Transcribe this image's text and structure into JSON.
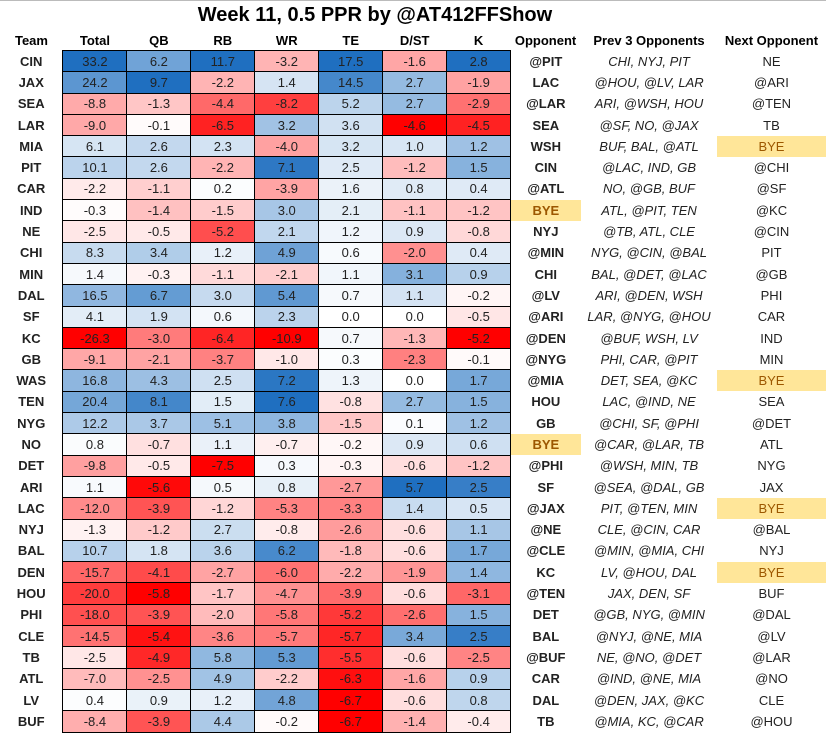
{
  "title": "Week 11, 0.5 PPR by @AT412FFShow",
  "chart_data": {
    "type": "heatmap",
    "title": "Week 11, 0.5 PPR by @AT412FFShow",
    "columns": [
      "Team",
      "Total",
      "QB",
      "RB",
      "WR",
      "TE",
      "D/ST",
      "K",
      "Opponent",
      "Prev  3 Opponents",
      "Next Opponent"
    ],
    "value_columns": [
      "Total",
      "QB",
      "RB",
      "WR",
      "TE",
      "D/ST",
      "K"
    ],
    "colors": {
      "negative": "#FF0000",
      "neutral": "#FFFFFF",
      "positive": "#1F6FC0",
      "bye": "#FFE699"
    },
    "rows": [
      [
        "CIN",
        33.2,
        6.2,
        11.7,
        -3.2,
        17.5,
        -1.6,
        2.8,
        "@PIT",
        "CHI, NYJ, PIT",
        "NE"
      ],
      [
        "JAX",
        24.2,
        9.7,
        -2.2,
        1.4,
        14.5,
        2.7,
        -1.9,
        "LAC",
        "@HOU, @LV, LAR",
        "@ARI"
      ],
      [
        "SEA",
        -8.8,
        -1.3,
        -4.4,
        -8.2,
        5.2,
        2.7,
        -2.9,
        "@LAR",
        "ARI, @WSH, HOU",
        "@TEN"
      ],
      [
        "LAR",
        -9.0,
        -0.1,
        -6.5,
        3.2,
        3.6,
        -4.6,
        -4.5,
        "SEA",
        "@SF, NO, @JAX",
        "TB"
      ],
      [
        "MIA",
        6.1,
        2.6,
        2.3,
        -4.0,
        3.2,
        1.0,
        1.2,
        "WSH",
        "BUF, BAL, @ATL",
        "BYE"
      ],
      [
        "PIT",
        10.1,
        2.6,
        -2.2,
        7.1,
        2.5,
        -1.2,
        1.5,
        "CIN",
        "@LAC, IND, GB",
        "@CHI"
      ],
      [
        "CAR",
        -2.2,
        -1.1,
        0.2,
        -3.9,
        1.6,
        0.8,
        0.4,
        "@ATL",
        "NO, @GB, BUF",
        "@SF"
      ],
      [
        "IND",
        -0.3,
        -1.4,
        -1.5,
        3.0,
        2.1,
        -1.1,
        -1.2,
        "BYE",
        "ATL, @PIT, TEN",
        "@KC"
      ],
      [
        "NE",
        -2.5,
        -0.5,
        -5.2,
        2.1,
        1.2,
        0.9,
        -0.8,
        "NYJ",
        "@TB, ATL, CLE",
        "@CIN"
      ],
      [
        "CHI",
        8.3,
        3.4,
        1.2,
        4.9,
        0.6,
        -2.0,
        0.4,
        "@MIN",
        "NYG, @CIN, @BAL",
        "PIT"
      ],
      [
        "MIN",
        1.4,
        -0.3,
        -1.1,
        -2.1,
        1.1,
        3.1,
        0.9,
        "CHI",
        "BAL, @DET, @LAC",
        "@GB"
      ],
      [
        "DAL",
        16.5,
        6.7,
        3.0,
        5.4,
        0.7,
        1.1,
        -0.2,
        "@LV",
        "ARI, @DEN, WSH",
        "PHI"
      ],
      [
        "SF",
        4.1,
        1.9,
        0.6,
        2.3,
        0.0,
        0.0,
        -0.5,
        "@ARI",
        "LAR, @NYG, @HOU",
        "CAR"
      ],
      [
        "KC",
        -26.3,
        -3.0,
        -6.4,
        -10.9,
        0.7,
        -1.3,
        -5.2,
        "@DEN",
        "@BUF, WSH, LV",
        "IND"
      ],
      [
        "GB",
        -9.1,
        -2.1,
        -3.7,
        -1.0,
        0.3,
        -2.3,
        -0.1,
        "@NYG",
        "PHI, CAR, @PIT",
        "MIN"
      ],
      [
        "WAS",
        16.8,
        4.3,
        2.5,
        7.2,
        1.3,
        0.0,
        1.7,
        "@MIA",
        "DET, SEA, @KC",
        "BYE"
      ],
      [
        "TEN",
        20.4,
        8.1,
        1.5,
        7.6,
        -0.8,
        2.7,
        1.5,
        "HOU",
        "LAC, @IND, NE",
        "SEA"
      ],
      [
        "NYG",
        12.2,
        3.7,
        5.1,
        3.8,
        -1.5,
        0.1,
        1.2,
        "GB",
        "@CHI, SF, @PHI",
        "@DET"
      ],
      [
        "NO",
        0.8,
        -0.7,
        1.1,
        -0.7,
        -0.2,
        0.9,
        0.6,
        "BYE",
        "@CAR, @LAR, TB",
        "ATL"
      ],
      [
        "DET",
        -9.8,
        -0.5,
        -7.5,
        0.3,
        -0.3,
        -0.6,
        -1.2,
        "@PHI",
        "@WSH, MIN, TB",
        "NYG"
      ],
      [
        "ARI",
        1.1,
        -5.6,
        0.5,
        0.8,
        -2.7,
        5.7,
        2.5,
        "SF",
        "@SEA, @DAL, GB",
        "JAX"
      ],
      [
        "LAC",
        -12.0,
        -3.9,
        -1.2,
        -5.3,
        -3.3,
        1.4,
        0.5,
        "@JAX",
        "PIT, @TEN, MIN",
        "BYE"
      ],
      [
        "NYJ",
        -1.3,
        -1.2,
        2.7,
        -0.8,
        -2.6,
        -0.6,
        1.1,
        "@NE",
        "CLE, @CIN, CAR",
        "@BAL"
      ],
      [
        "BAL",
        10.7,
        1.8,
        3.6,
        6.2,
        -1.8,
        -0.6,
        1.7,
        "@CLE",
        "@MIN, @MIA, CHI",
        "NYJ"
      ],
      [
        "DEN",
        -15.7,
        -4.1,
        -2.7,
        -6.0,
        -2.2,
        -1.9,
        1.4,
        "KC",
        "LV, @HOU, DAL",
        "BYE"
      ],
      [
        "HOU",
        -20.0,
        -5.8,
        -1.7,
        -4.7,
        -3.9,
        -0.6,
        -3.1,
        "@TEN",
        "JAX, DEN, SF",
        "BUF"
      ],
      [
        "PHI",
        -18.0,
        -3.9,
        -2.0,
        -5.8,
        -5.2,
        -2.6,
        1.5,
        "DET",
        "@GB, NYG, @MIN",
        "@DAL"
      ],
      [
        "CLE",
        -14.5,
        -5.4,
        -3.6,
        -5.7,
        -5.7,
        3.4,
        2.5,
        "BAL",
        "@NYJ, @NE, MIA",
        "@LV"
      ],
      [
        "TB",
        -2.5,
        -4.9,
        5.8,
        5.3,
        -5.5,
        -0.6,
        -2.5,
        "@BUF",
        "NE, @NO, @DET",
        "@LAR"
      ],
      [
        "ATL",
        -7.0,
        -2.5,
        4.9,
        -2.2,
        -6.3,
        -1.6,
        0.9,
        "CAR",
        "@IND, @NE, MIA",
        "@NO"
      ],
      [
        "LV",
        0.4,
        0.9,
        1.2,
        4.8,
        -6.7,
        -0.6,
        0.8,
        "DAL",
        "@DEN, JAX, @KC",
        "CLE"
      ],
      [
        "BUF",
        -8.4,
        -3.9,
        4.4,
        -0.2,
        -6.7,
        -1.4,
        -0.4,
        "TB",
        "@MIA, KC, @CAR",
        "@HOU"
      ]
    ]
  }
}
